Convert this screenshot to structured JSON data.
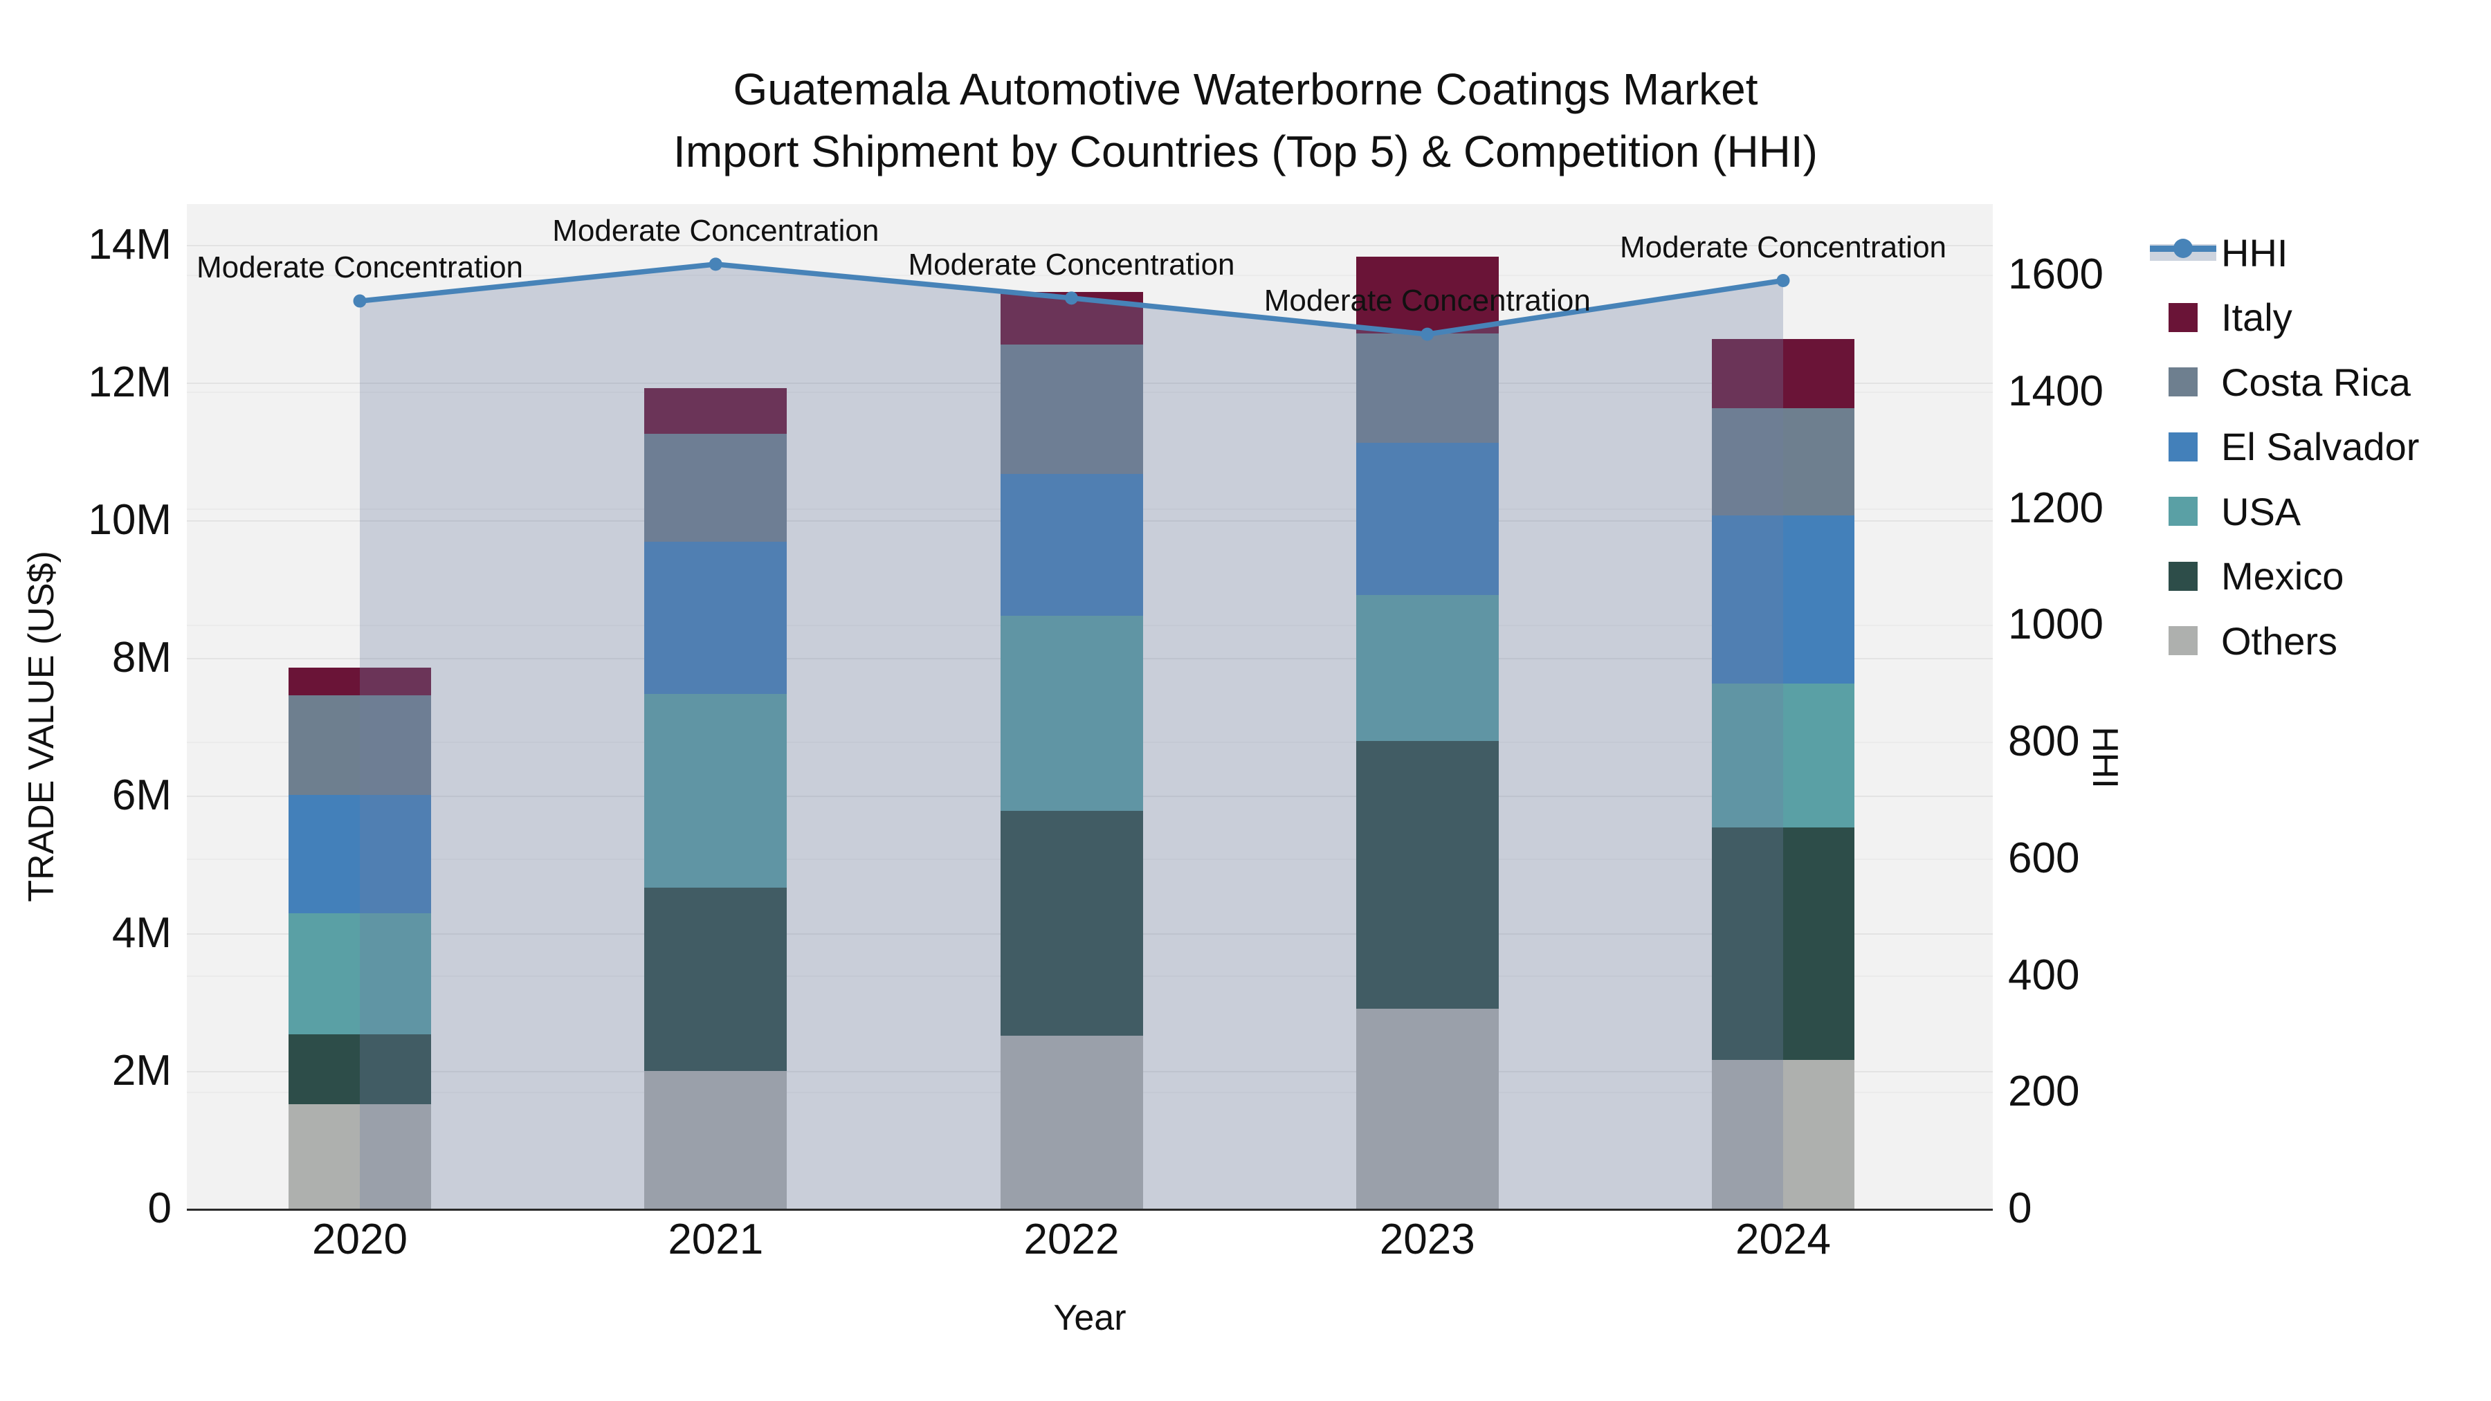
{
  "title": {
    "line1": "Guatemala Automotive Waterborne Coatings Market",
    "line2": "Import Shipment by Countries (Top 5) & Competition (HHI)"
  },
  "axes": {
    "y_left": {
      "title": "TRADE VALUE (US$)",
      "tick_values": [
        0,
        2,
        4,
        6,
        8,
        10,
        12,
        14
      ],
      "tick_labels": [
        "0",
        "2M",
        "4M",
        "6M",
        "8M",
        "10M",
        "12M",
        "14M"
      ],
      "lim": [
        0,
        14.59
      ]
    },
    "y_right": {
      "title": "HHI",
      "tick_values": [
        0,
        200,
        400,
        600,
        800,
        1000,
        1200,
        1400,
        1600
      ],
      "tick_labels": [
        "0",
        "200",
        "400",
        "600",
        "800",
        "1000",
        "1200",
        "1400",
        "1600"
      ],
      "lim": [
        0,
        1721
      ]
    },
    "x": {
      "title": "Year",
      "categories": [
        "2020",
        "2021",
        "2022",
        "2023",
        "2024"
      ]
    }
  },
  "legend": {
    "items": [
      {
        "label": "HHI",
        "marker": "line"
      },
      {
        "label": "Italy",
        "marker": "swatch"
      },
      {
        "label": "Costa Rica",
        "marker": "swatch"
      },
      {
        "label": "El Salvador",
        "marker": "swatch"
      },
      {
        "label": "USA",
        "marker": "swatch"
      },
      {
        "label": "Mexico",
        "marker": "swatch"
      },
      {
        "label": "Others",
        "marker": "swatch"
      }
    ]
  },
  "chart_data": {
    "type": "stacked-bar+line",
    "title": "Guatemala Automotive Waterborne Coatings Market — Import Shipment by Countries (Top 5) & Competition (HHI)",
    "categories": [
      "2020",
      "2021",
      "2022",
      "2023",
      "2024"
    ],
    "value_unit": "million US$",
    "xlabel": "Year",
    "ylabel_left": "TRADE VALUE (US$)",
    "ylabel_right": "HHI",
    "grid": true,
    "legend_position": "right",
    "plot_bg_color": "#f2f2f2",
    "stack_order_bottom_to_top": [
      "Others",
      "Mexico",
      "USA",
      "El Salvador",
      "Costa Rica",
      "Italy"
    ],
    "series": [
      {
        "name": "Italy",
        "color": "#6a1437",
        "values": [
          0.4,
          0.67,
          0.76,
          1.12,
          1.0
        ]
      },
      {
        "name": "Costa Rica",
        "color": "#6e7f8f",
        "values": [
          1.45,
          1.56,
          1.88,
          1.59,
          1.56
        ]
      },
      {
        "name": "El Salvador",
        "color": "#4380ba",
        "values": [
          1.72,
          2.21,
          2.06,
          2.21,
          2.44
        ]
      },
      {
        "name": "USA",
        "color": "#5aa0a5",
        "values": [
          1.76,
          2.82,
          2.83,
          2.12,
          2.09
        ]
      },
      {
        "name": "Mexico",
        "color": "#2d4d49",
        "values": [
          1.01,
          2.66,
          3.27,
          3.89,
          3.38
        ]
      },
      {
        "name": "Others",
        "color": "#aeb0ae",
        "values": [
          1.52,
          2.0,
          2.51,
          2.9,
          2.16
        ]
      }
    ],
    "bar_totals": [
      7.86,
      11.92,
      13.31,
      13.83,
      12.63
    ],
    "hhi": {
      "name": "HHI",
      "axis": "right",
      "color": "#4783b8",
      "area_fill": "rgba(111,127,162,0.31)",
      "legend_band_color": "#ccd3de",
      "values": [
        1555,
        1618,
        1560,
        1498,
        1590
      ]
    },
    "annotations": [
      "Moderate Concentration",
      "Moderate Concentration",
      "Moderate Concentration",
      "Moderate Concentration",
      "Moderate Concentration"
    ]
  }
}
